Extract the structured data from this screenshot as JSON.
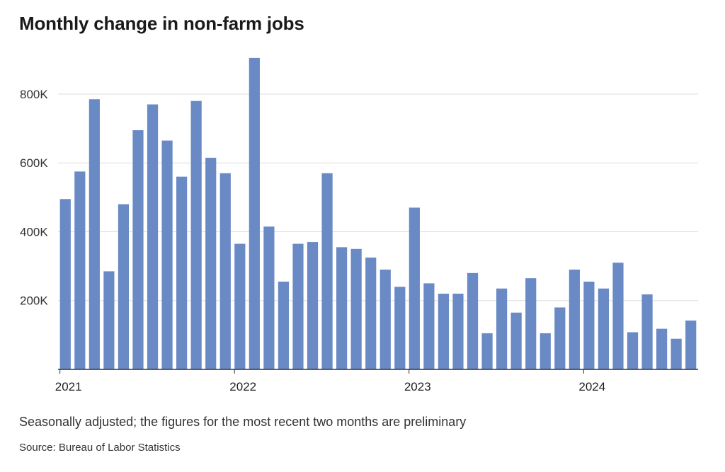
{
  "chart_data": {
    "type": "bar",
    "title": "Monthly change in non-farm jobs",
    "note": "Seasonally adjusted; the figures for the most recent two months are preliminary",
    "source": "Source: Bureau of Labor Statistics",
    "xlabel": "",
    "ylabel": "",
    "ylim": [
      0,
      950000
    ],
    "yticks": [
      200000,
      400000,
      600000,
      800000
    ],
    "ytick_labels": [
      "200K",
      "400K",
      "600K",
      "800K"
    ],
    "x_tick_labels": [
      {
        "label": "2021",
        "index": 0
      },
      {
        "label": "2022",
        "index": 12
      },
      {
        "label": "2023",
        "index": 24
      },
      {
        "label": "2024",
        "index": 36
      }
    ],
    "categories": [
      "2021-01",
      "2021-02",
      "2021-03",
      "2021-04",
      "2021-05",
      "2021-06",
      "2021-07",
      "2021-08",
      "2021-09",
      "2021-10",
      "2021-11",
      "2021-12",
      "2022-01",
      "2022-02",
      "2022-03",
      "2022-04",
      "2022-05",
      "2022-06",
      "2022-07",
      "2022-08",
      "2022-09",
      "2022-10",
      "2022-11",
      "2022-12",
      "2023-01",
      "2023-02",
      "2023-03",
      "2023-04",
      "2023-05",
      "2023-06",
      "2023-07",
      "2023-08",
      "2023-09",
      "2023-10",
      "2023-11",
      "2023-12",
      "2024-01",
      "2024-02",
      "2024-03",
      "2024-04",
      "2024-05",
      "2024-06",
      "2024-07",
      "2024-08"
    ],
    "values": [
      495000,
      575000,
      785000,
      285000,
      480000,
      695000,
      770000,
      665000,
      560000,
      780000,
      615000,
      570000,
      365000,
      905000,
      415000,
      255000,
      365000,
      370000,
      570000,
      355000,
      350000,
      325000,
      290000,
      240000,
      470000,
      250000,
      220000,
      220000,
      280000,
      105000,
      235000,
      165000,
      265000,
      105000,
      180000,
      290000,
      255000,
      235000,
      310000,
      108000,
      218000,
      118000,
      89000,
      142000
    ],
    "grid": true,
    "bar_color": "#6a8ac6",
    "grid_color": "#dddddd",
    "axis_color": "#333333"
  }
}
